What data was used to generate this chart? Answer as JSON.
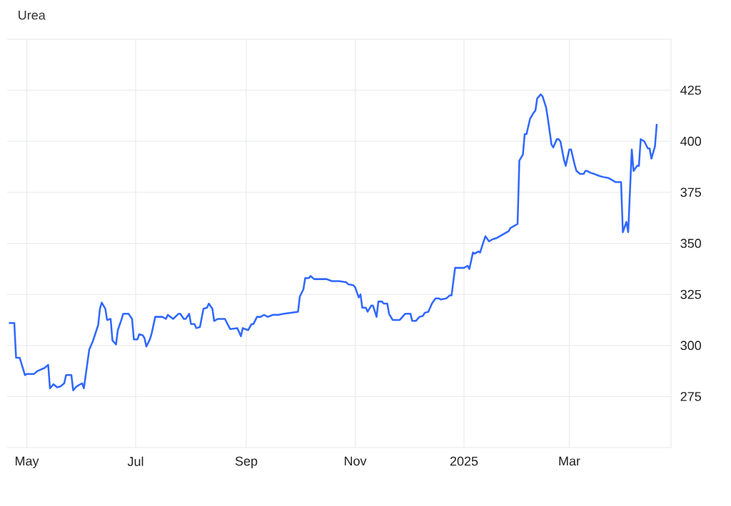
{
  "chart_data": {
    "type": "line",
    "title": "Urea",
    "x": [
      "2024-04-21",
      "2024-04-24",
      "2024-04-25",
      "2024-04-27",
      "2024-04-30",
      "2024-05-01",
      "2024-05-05",
      "2024-05-07",
      "2024-05-11",
      "2024-05-13",
      "2024-05-14",
      "2024-05-16",
      "2024-05-18",
      "2024-05-20",
      "2024-05-22",
      "2024-05-23",
      "2024-05-26",
      "2024-05-27",
      "2024-05-29",
      "2024-06-01",
      "2024-06-02",
      "2024-06-05",
      "2024-06-07",
      "2024-06-10",
      "2024-06-11",
      "2024-06-12",
      "2024-06-14",
      "2024-06-15",
      "2024-06-17",
      "2024-06-18",
      "2024-06-20",
      "2024-06-21",
      "2024-06-23",
      "2024-06-24",
      "2024-06-27",
      "2024-06-29",
      "2024-06-30",
      "2024-07-02",
      "2024-07-03",
      "2024-07-05",
      "2024-07-06",
      "2024-07-07",
      "2024-07-09",
      "2024-07-10",
      "2024-07-12",
      "2024-07-16",
      "2024-07-18",
      "2024-07-19",
      "2024-07-22",
      "2024-07-25",
      "2024-07-26",
      "2024-07-28",
      "2024-07-29",
      "2024-07-31",
      "2024-08-01",
      "2024-08-03",
      "2024-08-04",
      "2024-08-06",
      "2024-08-08",
      "2024-08-10",
      "2024-08-11",
      "2024-08-13",
      "2024-08-14",
      "2024-08-16",
      "2024-08-20",
      "2024-08-23",
      "2024-08-27",
      "2024-08-29",
      "2024-08-30",
      "2024-09-02",
      "2024-09-04",
      "2024-09-05",
      "2024-09-07",
      "2024-09-09",
      "2024-09-11",
      "2024-09-13",
      "2024-09-16",
      "2024-09-19",
      "2024-09-22",
      "2024-09-26",
      "2024-09-30",
      "2024-10-01",
      "2024-10-03",
      "2024-10-04",
      "2024-10-06",
      "2024-10-07",
      "2024-10-09",
      "2024-10-11",
      "2024-10-16",
      "2024-10-19",
      "2024-10-23",
      "2024-10-27",
      "2024-10-28",
      "2024-10-31",
      "2024-11-01",
      "2024-11-03",
      "2024-11-04",
      "2024-11-05",
      "2024-11-07",
      "2024-11-08",
      "2024-11-10",
      "2024-11-11",
      "2024-11-13",
      "2024-11-14",
      "2024-11-16",
      "2024-11-17",
      "2024-11-19",
      "2024-11-20",
      "2024-11-22",
      "2024-11-26",
      "2024-11-28",
      "2024-11-29",
      "2024-12-02",
      "2024-12-03",
      "2024-12-05",
      "2024-12-07",
      "2024-12-09",
      "2024-12-10",
      "2024-12-12",
      "2024-12-14",
      "2024-12-16",
      "2024-12-18",
      "2024-12-19",
      "2024-12-22",
      "2024-12-24",
      "2024-12-25",
      "2024-12-27",
      "2025-01-01",
      "2025-01-03",
      "2025-01-04",
      "2025-01-06",
      "2025-01-07",
      "2025-01-09",
      "2025-01-10",
      "2025-01-12",
      "2025-01-13",
      "2025-01-15",
      "2025-01-17",
      "2025-01-19",
      "2025-01-22",
      "2025-01-23",
      "2025-01-26",
      "2025-01-27",
      "2025-01-29",
      "2025-01-31",
      "2025-02-01",
      "2025-02-03",
      "2025-02-04",
      "2025-02-05",
      "2025-02-07",
      "2025-02-09",
      "2025-02-10",
      "2025-02-11",
      "2025-02-13",
      "2025-02-14",
      "2025-02-16",
      "2025-02-17",
      "2025-02-19",
      "2025-02-20",
      "2025-02-22",
      "2025-02-23",
      "2025-02-24",
      "2025-02-26",
      "2025-02-27",
      "2025-03-01",
      "2025-03-02",
      "2025-03-04",
      "2025-03-05",
      "2025-03-07",
      "2025-03-09",
      "2025-03-10",
      "2025-03-11",
      "2025-03-13",
      "2025-03-15",
      "2025-03-18",
      "2025-03-20",
      "2025-03-23",
      "2025-03-25",
      "2025-03-27",
      "2025-03-28",
      "2025-03-30",
      "2025-03-31",
      "2025-04-02",
      "2025-04-03",
      "2025-04-05",
      "2025-04-06",
      "2025-04-08",
      "2025-04-09",
      "2025-04-10",
      "2025-04-12",
      "2025-04-14",
      "2025-04-15",
      "2025-04-16",
      "2025-04-18",
      "2025-04-19"
    ],
    "series": [
      {
        "color": "#3068ff",
        "values": [
          311,
          311,
          294,
          294,
          285.5,
          286,
          286,
          287.5,
          289,
          290.5,
          279,
          281,
          279.5,
          280,
          281.5,
          285.5,
          285.5,
          278,
          280,
          281.5,
          279,
          298,
          302,
          310,
          318,
          321,
          318,
          312.5,
          313,
          302.5,
          300.5,
          307.5,
          312.5,
          315.5,
          315.5,
          313,
          303,
          303,
          305.5,
          305,
          303.5,
          299.5,
          303,
          306,
          314,
          314,
          313,
          315,
          313,
          315.5,
          315.5,
          313,
          313,
          315.5,
          310.5,
          310.5,
          308.5,
          309,
          318,
          318.5,
          320.5,
          318,
          312,
          313,
          313,
          308,
          308.5,
          304.5,
          308.5,
          307.5,
          310.5,
          310.5,
          314,
          314,
          315,
          314,
          315,
          315,
          315.5,
          316,
          316.5,
          324,
          327.5,
          333,
          333,
          334,
          332.5,
          332.5,
          332.5,
          331.5,
          331.5,
          331,
          330,
          329.5,
          328.5,
          323.5,
          325,
          318.5,
          318.5,
          316.5,
          319.5,
          319.5,
          314,
          321.5,
          321.5,
          320.5,
          320.5,
          315.5,
          312.5,
          312.5,
          314.5,
          315.5,
          315.5,
          312,
          312,
          314,
          314.5,
          316,
          316.5,
          320.5,
          323,
          323,
          322.5,
          323,
          324.5,
          324.5,
          338,
          338,
          339,
          337.5,
          345.5,
          345,
          346,
          345.5,
          351,
          353.5,
          351,
          352,
          352.5,
          354,
          354.5,
          356,
          357.5,
          358.5,
          359.5,
          390.5,
          393.5,
          403.5,
          403.5,
          411,
          414,
          415,
          421,
          423,
          422,
          416.5,
          411,
          398.5,
          397,
          401,
          401,
          400,
          391,
          388,
          396,
          396,
          388.5,
          385.5,
          384,
          384,
          385.5,
          385.5,
          384.5,
          384,
          383,
          382.5,
          382,
          381,
          380,
          380,
          380,
          355.5,
          360.5,
          355.5,
          396,
          385.5,
          388,
          388,
          401,
          400,
          396.5,
          396.5,
          391.5,
          397.5,
          408.5
        ]
      }
    ],
    "xlim": [
      "2024-04-20",
      "2025-04-27"
    ],
    "xticks": [
      {
        "value": "2024-05-01",
        "label": "May"
      },
      {
        "value": "2024-07-01",
        "label": "Jul"
      },
      {
        "value": "2024-09-01",
        "label": "Sep"
      },
      {
        "value": "2024-11-01",
        "label": "Nov"
      },
      {
        "value": "2025-01-01",
        "label": "2025"
      },
      {
        "value": "2025-03-01",
        "label": "Mar"
      }
    ],
    "ylim": [
      250,
      450
    ],
    "yticks": [
      275,
      300,
      325,
      350,
      375,
      400,
      425,
      {
        "value": 450,
        "label": null
      }
    ],
    "grid": true
  }
}
